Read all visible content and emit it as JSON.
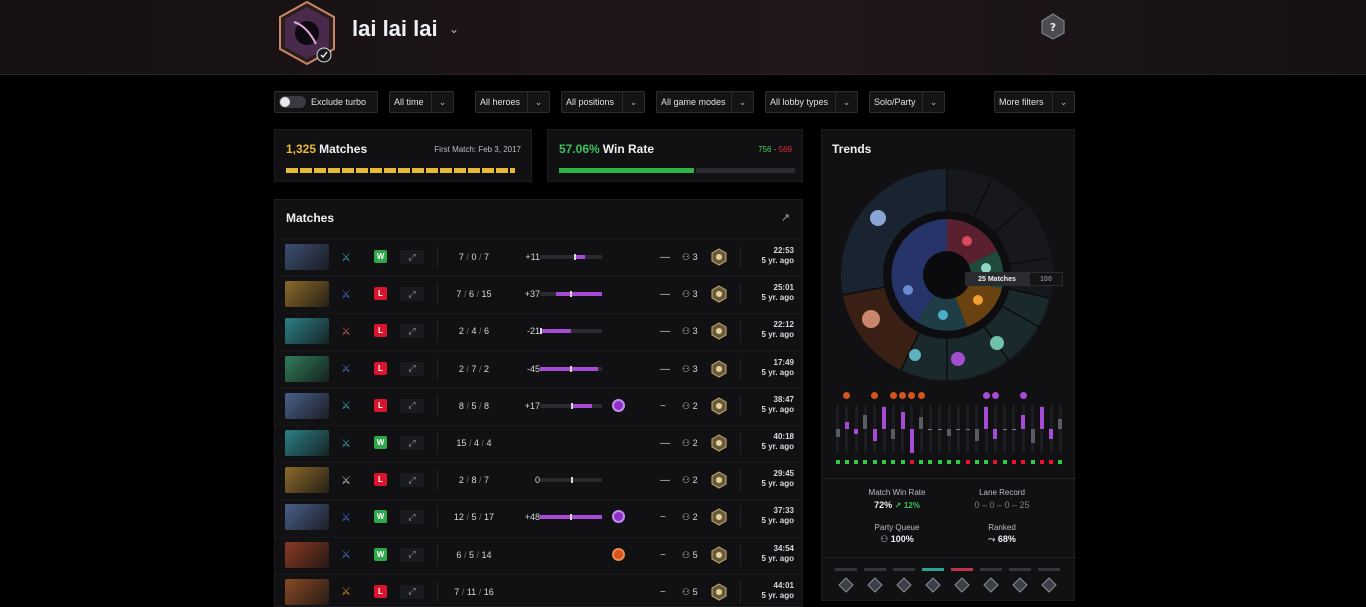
{
  "profile": {
    "name": "lai lai lai"
  },
  "filters": {
    "exclude_turbo": "Exclude turbo",
    "items": [
      "All time",
      "All heroes",
      "All positions",
      "All game modes",
      "All lobby types",
      "Solo/Party",
      "More filters"
    ]
  },
  "summary": {
    "matches_count": "1,325",
    "matches_label": "Matches",
    "first_match": "First Match: Feb 3, 2017",
    "winrate_value": "57.06%",
    "winrate_label": "Win Rate",
    "wins": "756",
    "dash": "-",
    "losses": "569",
    "winrate_fraction": 0.5706
  },
  "matches": {
    "title": "Matches",
    "rows": [
      {
        "result": "W",
        "kills": "7",
        "deaths": "0",
        "assists": "7",
        "mmr": "+11",
        "bar_from": 0.55,
        "bar_to": 0.72,
        "medal": "",
        "party_type": "—",
        "party": "3",
        "time": "22:53",
        "ago": "5 yr. ago",
        "hero_color": "#3d4f73",
        "role_color": "#3aa7b5"
      },
      {
        "result": "L",
        "kills": "7",
        "deaths": "6",
        "assists": "15",
        "mmr": "+37",
        "bar_from": 0.25,
        "bar_to": 1.0,
        "medal": "",
        "party_type": "—",
        "party": "3",
        "time": "25:01",
        "ago": "5 yr. ago",
        "hero_color": "#8c6a2a",
        "role_color": "#4f72d6"
      },
      {
        "result": "L",
        "kills": "2",
        "deaths": "4",
        "assists": "6",
        "mmr": "-21",
        "bar_from": 0.0,
        "bar_to": 0.5,
        "medal": "",
        "party_type": "—",
        "party": "3",
        "time": "22:12",
        "ago": "5 yr. ago",
        "hero_color": "#2c7f86",
        "role_color": "#d35a5a"
      },
      {
        "result": "L",
        "kills": "2",
        "deaths": "7",
        "assists": "2",
        "mmr": "-45",
        "bar_from": 0.0,
        "bar_to": 0.94,
        "medal": "",
        "party_type": "—",
        "party": "3",
        "time": "17:49",
        "ago": "5 yr. ago",
        "hero_color": "#2f7c5a",
        "role_color": "#4f72d6"
      },
      {
        "result": "L",
        "kills": "8",
        "deaths": "5",
        "assists": "8",
        "mmr": "+17",
        "bar_from": 0.5,
        "bar_to": 0.84,
        "medal": "purple",
        "party_type": "~",
        "party": "2",
        "time": "38:47",
        "ago": "5 yr. ago",
        "hero_color": "#4a5f8a",
        "role_color": "#3aa7b5"
      },
      {
        "result": "W",
        "kills": "15",
        "deaths": "4",
        "assists": "4",
        "mmr": "",
        "bar_from": 0,
        "bar_to": 0,
        "medal": "",
        "party_type": "—",
        "party": "2",
        "time": "40:18",
        "ago": "5 yr. ago",
        "hero_color": "#2c7f86",
        "role_color": "#3aa7b5"
      },
      {
        "result": "L",
        "kills": "2",
        "deaths": "8",
        "assists": "7",
        "mmr": "0",
        "bar_from": 0.5,
        "bar_to": 0.5,
        "medal": "",
        "party_type": "—",
        "party": "2",
        "time": "29:45",
        "ago": "5 yr. ago",
        "hero_color": "#8c6a2a",
        "role_color": "#c9ccd2"
      },
      {
        "result": "W",
        "kills": "12",
        "deaths": "5",
        "assists": "17",
        "mmr": "+48",
        "bar_from": 0.0,
        "bar_to": 1.0,
        "medal": "purple",
        "party_type": "~",
        "party": "2",
        "time": "37:33",
        "ago": "5 yr. ago",
        "hero_color": "#4a5f8a",
        "role_color": "#4f72d6"
      },
      {
        "result": "W",
        "kills": "6",
        "deaths": "5",
        "assists": "14",
        "mmr": "",
        "bar_from": 0,
        "bar_to": 0,
        "medal": "orange",
        "party_type": "~",
        "party": "5",
        "time": "34:54",
        "ago": "5 yr. ago",
        "hero_color": "#8a3a24",
        "role_color": "#4f72d6"
      },
      {
        "result": "L",
        "kills": "7",
        "deaths": "11",
        "assists": "16",
        "mmr": "",
        "bar_from": 0,
        "bar_to": 0,
        "medal": "",
        "party_type": "~",
        "party": "5",
        "time": "44:01",
        "ago": "5 yr. ago",
        "hero_color": "#8a4a24",
        "role_color": "#e0901f"
      }
    ]
  },
  "trends": {
    "title": "Trends",
    "tab_active": "25 Matches",
    "tab_other": "100",
    "match_winrate_label": "Match Win Rate",
    "match_winrate_value": "72%",
    "match_winrate_delta": "12%",
    "lane_record_label": "Lane Record",
    "lane_record_value": "0 – 0 – 0 – 25",
    "party_queue_label": "Party Queue",
    "party_queue_value": "100%",
    "ranked_label": "Ranked",
    "ranked_value": "68%",
    "results": [
      "W",
      "W",
      "W",
      "W",
      "W",
      "W",
      "W",
      "W",
      "L",
      "W",
      "W",
      "W",
      "W",
      "W",
      "L",
      "W",
      "W",
      "L",
      "W",
      "L",
      "L",
      "W",
      "L",
      "L",
      "W"
    ],
    "bars": [
      -0.35,
      0.3,
      -0.2,
      0.6,
      -0.5,
      0.9,
      -0.4,
      0.7,
      -1.0,
      0.5,
      0.0,
      0.0,
      -0.3,
      0.0,
      0.0,
      -0.5,
      0.9,
      -0.4,
      0.0,
      0.0,
      0.6,
      -0.6,
      0.9,
      -0.4,
      0.4
    ],
    "medals": [
      1,
      4,
      6,
      7,
      8,
      9,
      16,
      17,
      20
    ],
    "colors": {
      "win": "#2ecc40",
      "loss": "#e8162c",
      "purple": "#a64bd6",
      "grey": "#5a5c63"
    }
  },
  "colors": {
    "gold": "#e8b935",
    "green": "#39c15c",
    "win_badge": "#2fa84a",
    "loss_badge": "#d9142c",
    "win_text": "#3bd15a",
    "loss_text": "#e5283a"
  }
}
